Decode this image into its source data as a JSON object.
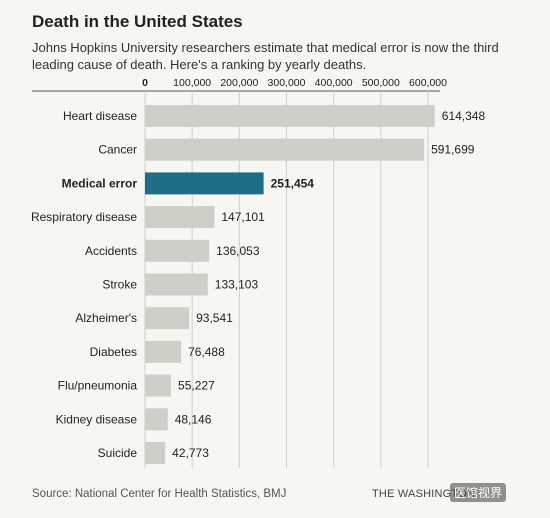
{
  "header": {
    "title": "Death in the United States",
    "subtitle": "Johns Hopkins University researchers estimate that medical error is now the third leading cause of death. Here's a ranking by yearly deaths."
  },
  "footer": {
    "source": "Source: National Center for Health Statistics, BMJ",
    "credit": "THE WASHINGTON",
    "watermark": "医馆视界"
  },
  "colors": {
    "bar": "#cfcfc8",
    "highlight": "#1f6e87",
    "grid": "#cfcfc8",
    "axis": "#555555"
  },
  "chart_data": {
    "type": "bar",
    "orientation": "horizontal",
    "categories": [
      "Heart disease",
      "Cancer",
      "Medical error",
      "Respiratory disease",
      "Accidents",
      "Stroke",
      "Alzheimer's",
      "Diabetes",
      "Flu/pneumonia",
      "Kidney disease",
      "Suicide"
    ],
    "values": [
      614348,
      591699,
      251454,
      147101,
      136053,
      133103,
      93541,
      76488,
      55227,
      48146,
      42773
    ],
    "value_labels": [
      "614,348",
      "591,699",
      "251,454",
      "147,101",
      "136,053",
      "133,103",
      "93,541",
      "76,488",
      "55,227",
      "48,146",
      "42,773"
    ],
    "highlight_category": "Medical error",
    "xlim": [
      0,
      600000
    ],
    "ticks": [
      0,
      100000,
      200000,
      300000,
      400000,
      500000,
      600000
    ],
    "tick_labels": [
      "0",
      "100,000",
      "200,000",
      "300,000",
      "400,000",
      "500,000",
      "600,000"
    ],
    "xaxis_position": "top",
    "grid": true
  }
}
